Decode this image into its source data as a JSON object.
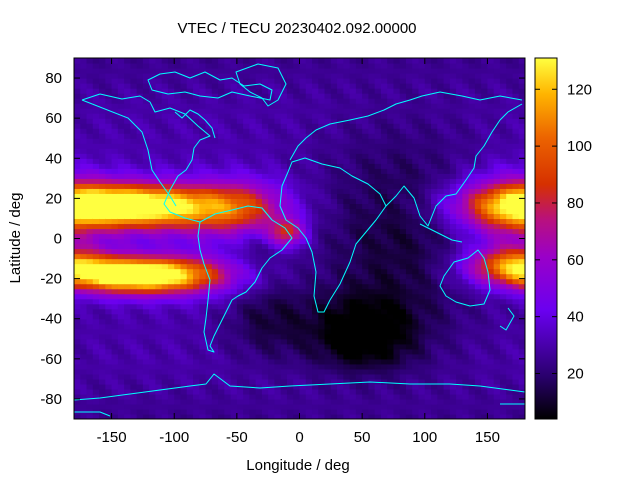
{
  "chart_data": {
    "type": "heatmap",
    "title": "VTEC / TECU 20230402.092.00000",
    "xlabel": "Longitude / deg",
    "ylabel": "Latitude / deg",
    "xlim": [
      -180,
      180
    ],
    "ylim": [
      -90,
      90
    ],
    "xticks": [
      -150,
      -100,
      -50,
      0,
      50,
      100,
      150
    ],
    "yticks": [
      -80,
      -60,
      -40,
      -20,
      0,
      20,
      40,
      60,
      80
    ],
    "colorbar": {
      "range": [
        4,
        131
      ],
      "ticks": [
        20,
        40,
        60,
        80,
        100,
        120
      ],
      "palette": "black-purple-red-orange-yellow"
    },
    "grid": false,
    "coastline_color": "#00ffff",
    "grid_resolution": {
      "lon_step_deg": 5,
      "lat_step_deg": 2.5
    },
    "features": {
      "background_tecu": 30,
      "crests": [
        {
          "lon": -150,
          "lat": 17,
          "peak_tecu": 122,
          "lon_width": 48,
          "lat_width": 7
        },
        {
          "lon": -140,
          "lat": -18,
          "peak_tecu": 126,
          "lon_width": 42,
          "lat_width": 6
        },
        {
          "lon": -95,
          "lat": 15,
          "peak_tecu": 82,
          "lon_width": 45,
          "lat_width": 9
        },
        {
          "lon": -100,
          "lat": -18,
          "peak_tecu": 78,
          "lon_width": 40,
          "lat_width": 7
        },
        {
          "lon": -45,
          "lat": 15,
          "peak_tecu": 68,
          "lon_width": 25,
          "lat_width": 10
        },
        {
          "lon": -10,
          "lat": 3,
          "peak_tecu": 82,
          "lon_width": 10,
          "lat_width": 5
        },
        {
          "lon": 170,
          "lat": 15,
          "peak_tecu": 82,
          "lon_width": 30,
          "lat_width": 12
        },
        {
          "lon": 170,
          "lat": -12,
          "peak_tecu": 92,
          "lon_width": 25,
          "lat_width": 6
        }
      ],
      "troughs": [
        {
          "lon": 50,
          "lat": -48,
          "depth_tecu": 28,
          "lon_width": 30,
          "lat_width": 14
        },
        {
          "lon": 80,
          "lat": 0,
          "depth_tecu": 18,
          "lon_width": 50,
          "lat_width": 40
        },
        {
          "lon": -25,
          "lat": -40,
          "depth_tecu": 16,
          "lon_width": 25,
          "lat_width": 15
        },
        {
          "lon": -35,
          "lat": -5,
          "depth_tecu": 10,
          "lon_width": 15,
          "lat_width": 10
        }
      ],
      "polar_tecu": 25
    }
  }
}
